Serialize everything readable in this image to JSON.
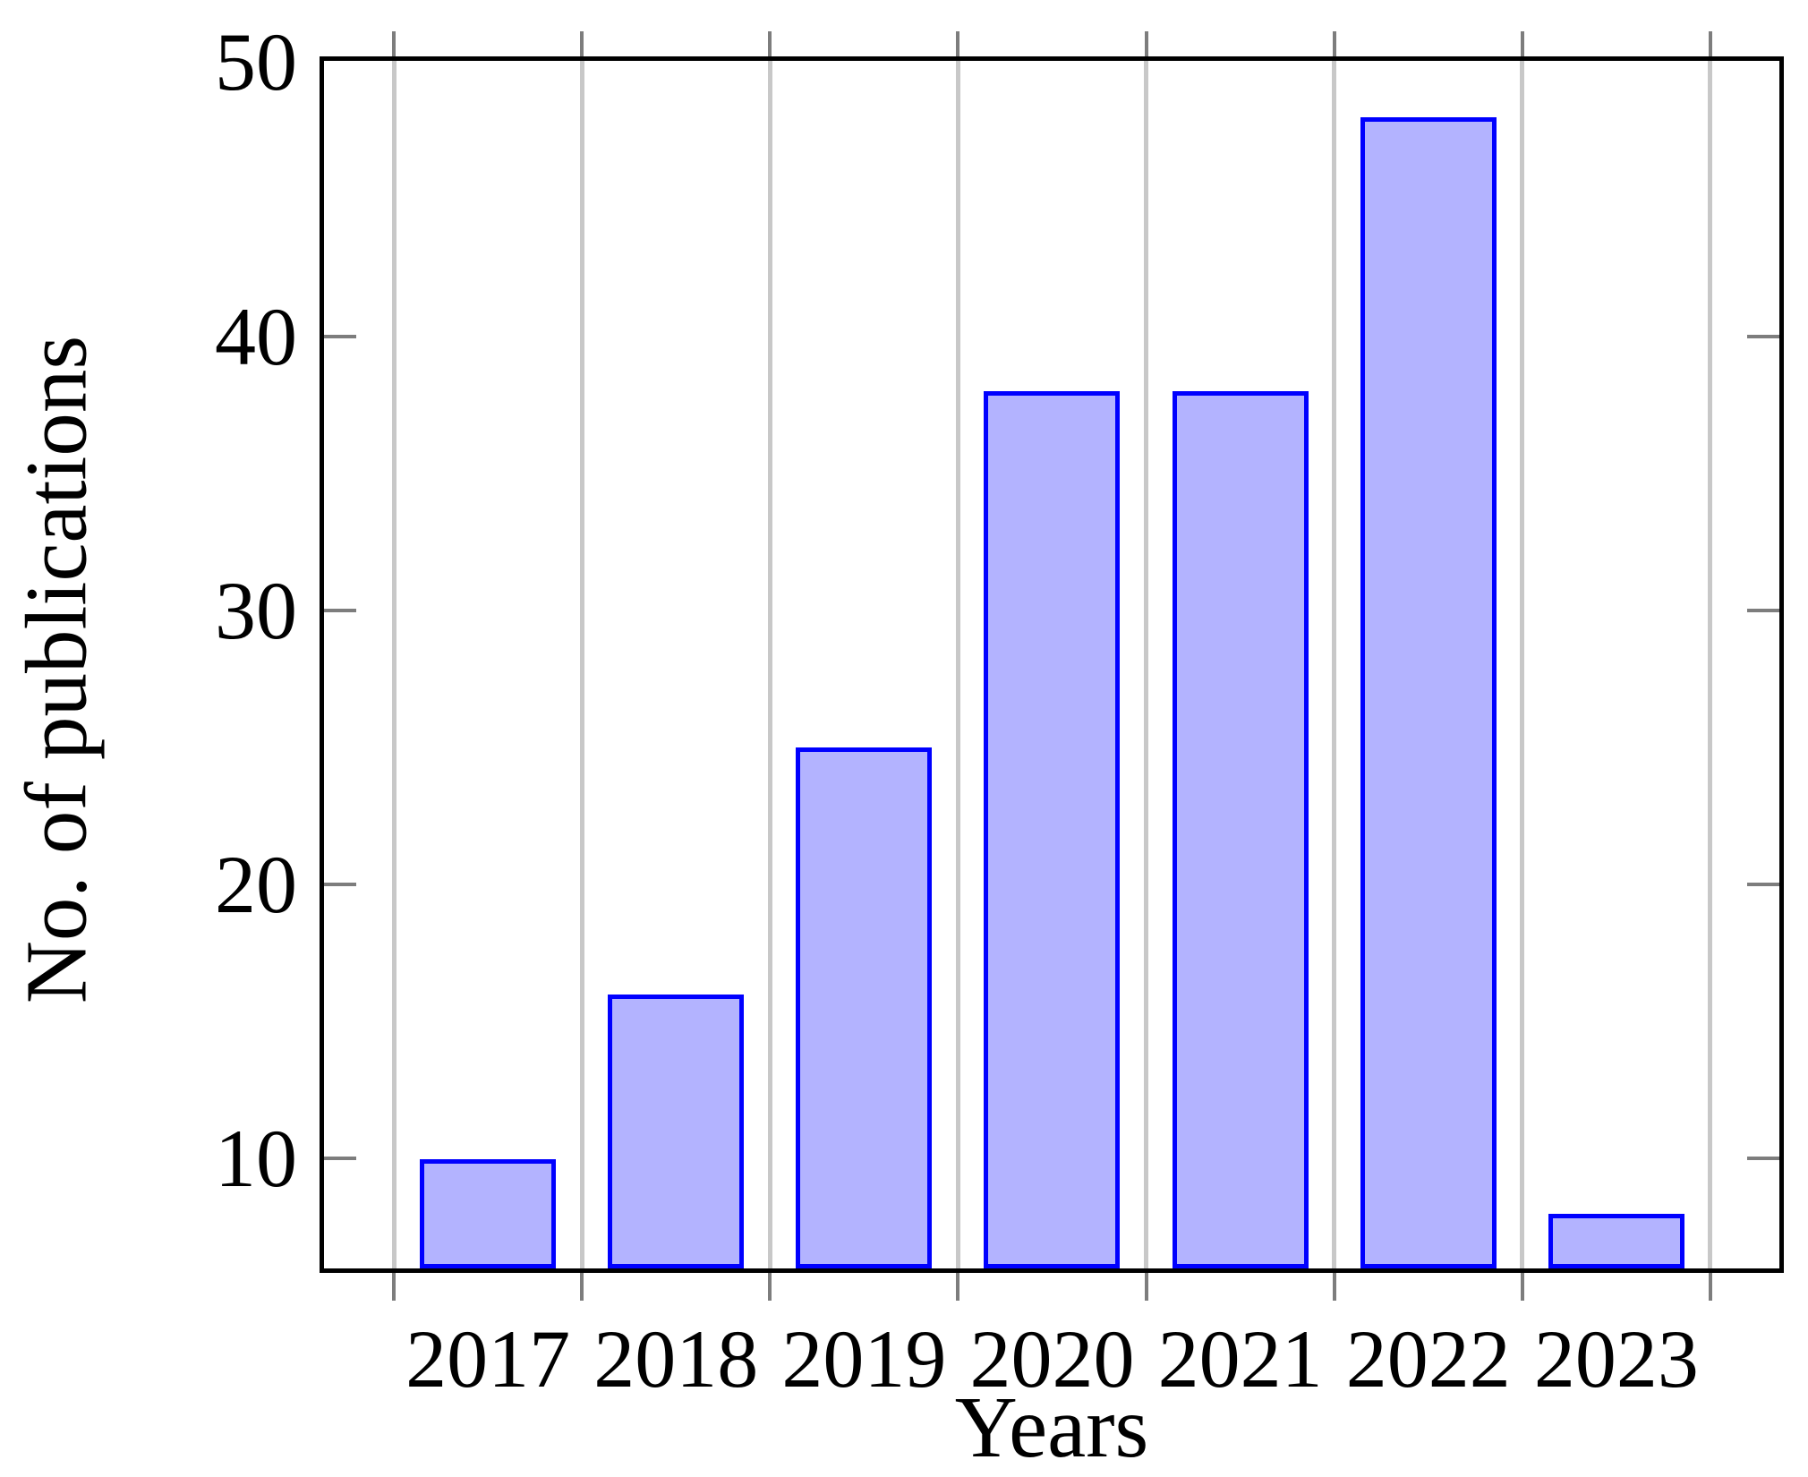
{
  "chart_data": {
    "type": "bar",
    "title": "",
    "categories": [
      "2017",
      "2018",
      "2019",
      "2020",
      "2021",
      "2022",
      "2023"
    ],
    "values": [
      10,
      16,
      25,
      38,
      38,
      48,
      8
    ],
    "xlabel": "Years",
    "ylabel": "No. of publications",
    "yticks": [
      10,
      20,
      30,
      40,
      50
    ],
    "ylim": [
      6,
      50
    ],
    "xlim_note": "category axis, 7 bars, enlarged limits ~0.35 bar-slot padding each side",
    "grid": "vertical lines at category boundaries only, no horizontal grid",
    "legend_position": "none",
    "colors": {
      "bar_fill": "#b3b3ff",
      "bar_border": "#0000ff",
      "grid_line": "#c8c8c8",
      "tick_mark": "#7d7d7d",
      "axis_frame": "#000000",
      "background": "#ffffff",
      "text": "#000000"
    }
  }
}
